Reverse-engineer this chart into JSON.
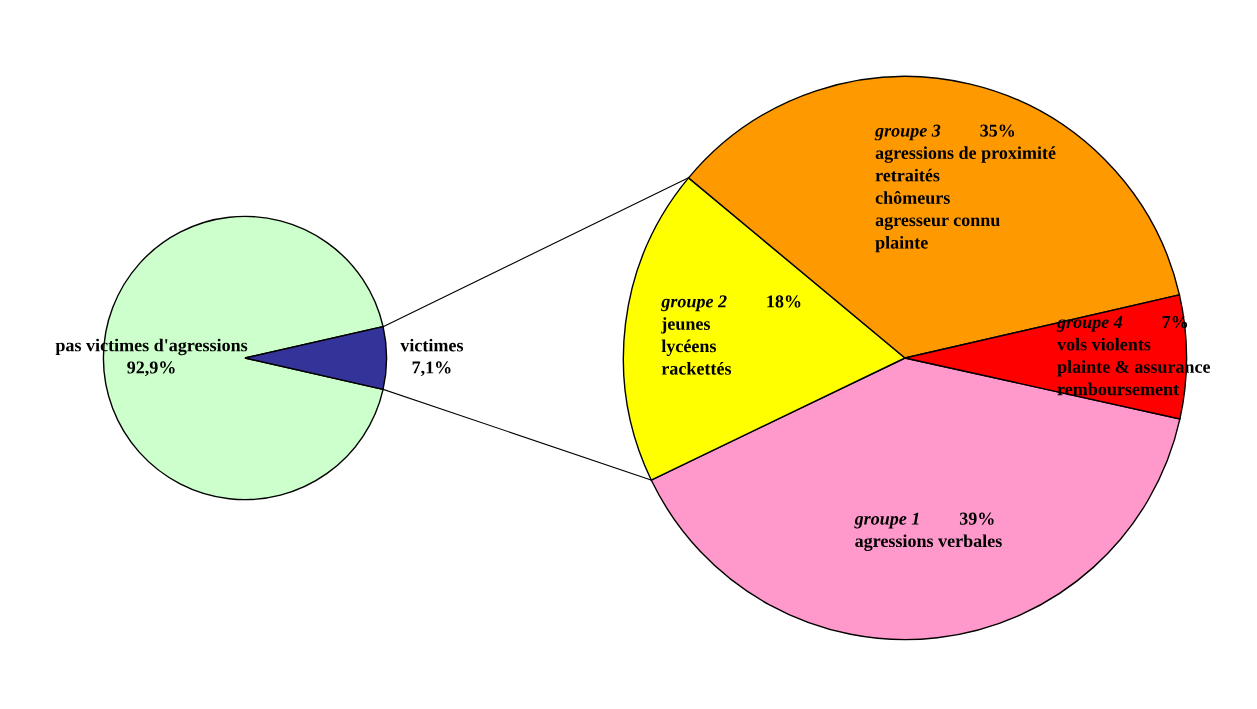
{
  "chart_data": [
    {
      "type": "pie",
      "categories": [
        "pas victimes d'agressions",
        "victimes"
      ],
      "values": [
        92.9,
        7.1
      ],
      "colors": [
        "#ccffcc",
        "#333399"
      ],
      "value_labels": [
        "92,9%",
        "7,1%"
      ]
    },
    {
      "type": "pie",
      "categories": [
        "groupe 1",
        "groupe 2",
        "groupe 3",
        "groupe 4"
      ],
      "values": [
        39,
        18,
        35,
        7
      ],
      "colors": [
        "#ff99cc",
        "#ffff00",
        "#ff9900",
        "#ff0000"
      ],
      "value_labels": [
        "39%",
        "18%",
        "35%",
        "7%"
      ],
      "annotations": [
        {
          "text": "agressions verbales",
          "x": "groupe 1"
        },
        {
          "text": "jeunes",
          "x": "groupe 2"
        },
        {
          "text": "lycéens",
          "x": "groupe 2"
        },
        {
          "text": "rackettés",
          "x": "groupe 2"
        },
        {
          "text": "agressions de proximité",
          "x": "groupe 3"
        },
        {
          "text": "retraités",
          "x": "groupe 3"
        },
        {
          "text": "chômeurs",
          "x": "groupe 3"
        },
        {
          "text": "agresseur connu",
          "x": "groupe 3"
        },
        {
          "text": "plainte",
          "x": "groupe 3"
        },
        {
          "text": "vols violents",
          "x": "groupe 4"
        },
        {
          "text": "plainte & assurance",
          "x": "groupe 4"
        },
        {
          "text": "remboursement",
          "x": "groupe 4"
        }
      ]
    }
  ]
}
